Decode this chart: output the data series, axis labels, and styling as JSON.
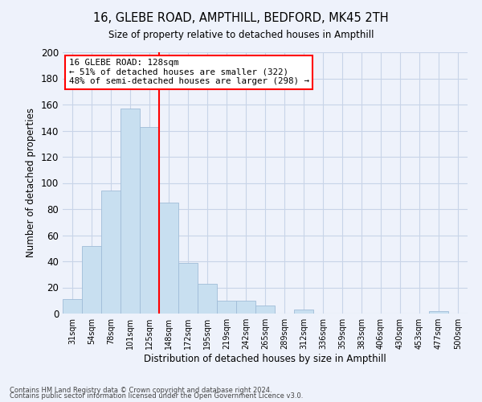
{
  "title": "16, GLEBE ROAD, AMPTHILL, BEDFORD, MK45 2TH",
  "subtitle": "Size of property relative to detached houses in Ampthill",
  "xlabel": "Distribution of detached houses by size in Ampthill",
  "ylabel": "Number of detached properties",
  "footnote1": "Contains HM Land Registry data © Crown copyright and database right 2024.",
  "footnote2": "Contains public sector information licensed under the Open Government Licence v3.0.",
  "bin_labels": [
    "31sqm",
    "54sqm",
    "78sqm",
    "101sqm",
    "125sqm",
    "148sqm",
    "172sqm",
    "195sqm",
    "219sqm",
    "242sqm",
    "265sqm",
    "289sqm",
    "312sqm",
    "336sqm",
    "359sqm",
    "383sqm",
    "406sqm",
    "430sqm",
    "453sqm",
    "477sqm",
    "500sqm"
  ],
  "bar_values": [
    11,
    52,
    94,
    157,
    143,
    85,
    39,
    23,
    10,
    10,
    6,
    0,
    3,
    0,
    0,
    0,
    0,
    0,
    0,
    2,
    0
  ],
  "bar_color": "#c8dff0",
  "bar_edgecolor": "#a0bcd8",
  "property_line_label": "16 GLEBE ROAD: 128sqm",
  "annotation_line1": "← 51% of detached houses are smaller (322)",
  "annotation_line2": "48% of semi-detached houses are larger (298) →",
  "vline_color": "red",
  "ylim": [
    0,
    200
  ],
  "yticks": [
    0,
    20,
    40,
    60,
    80,
    100,
    120,
    140,
    160,
    180,
    200
  ],
  "grid_color": "#c8d4e8",
  "bg_color": "#eef2fb"
}
